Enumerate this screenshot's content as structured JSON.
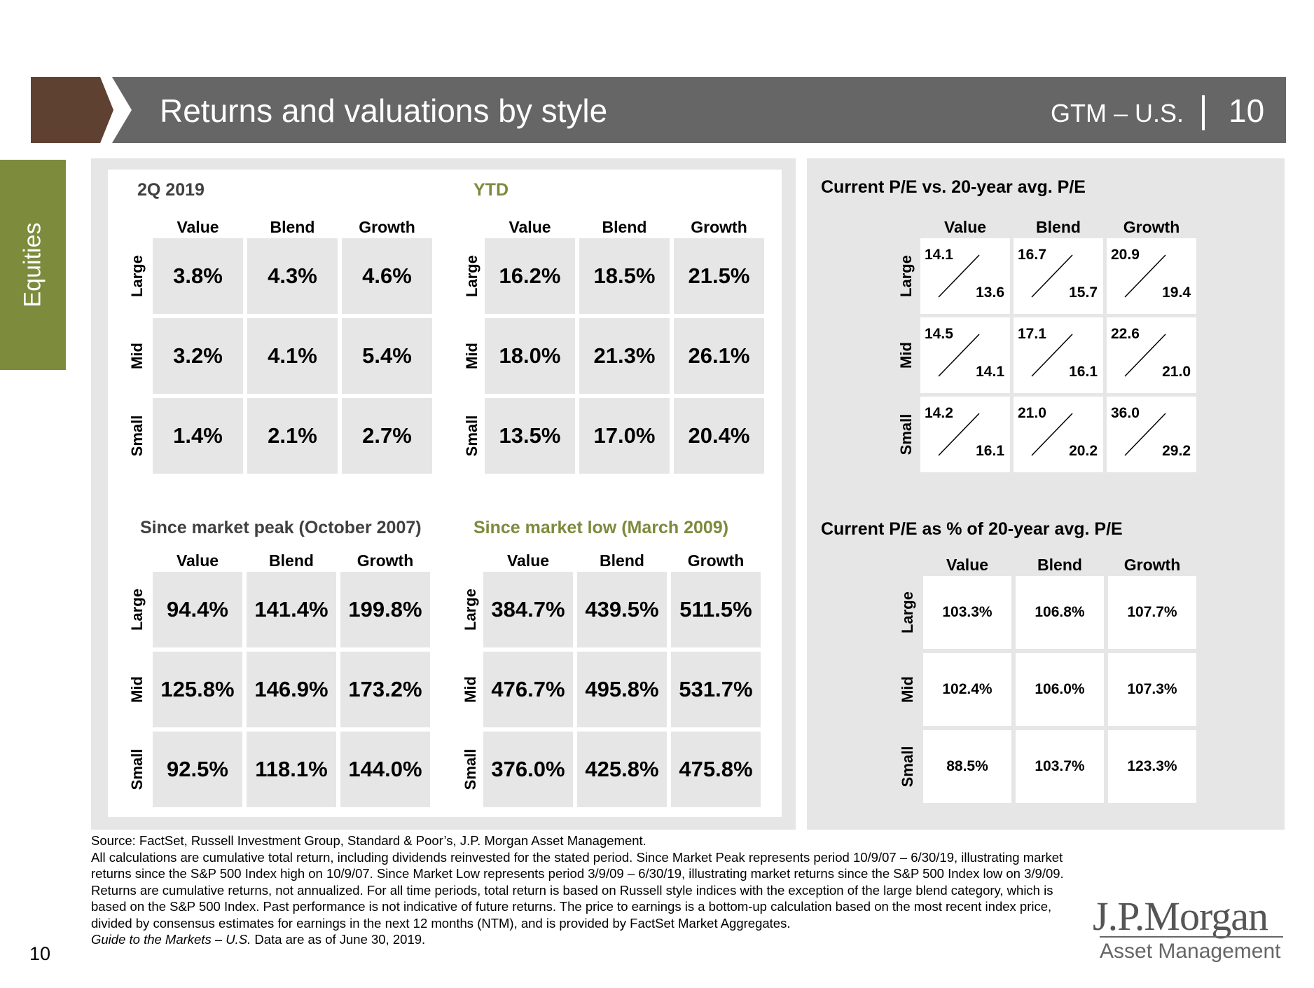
{
  "header": {
    "title": "Returns and valuations by style",
    "gtm": "GTM – U.S.",
    "page": "10"
  },
  "side_tab": "Equities",
  "grids": [
    {
      "title": "2Q 2019",
      "title_color": "#404040",
      "columns": [
        "Value",
        "Blend",
        "Growth"
      ],
      "rows": [
        "Large",
        "Mid",
        "Small"
      ],
      "values": [
        [
          "3.8%",
          "4.3%",
          "4.6%"
        ],
        [
          "3.2%",
          "4.1%",
          "5.4%"
        ],
        [
          "1.4%",
          "2.1%",
          "2.7%"
        ]
      ]
    },
    {
      "title": "YTD",
      "title_color": "#7c8b3c",
      "columns": [
        "Value",
        "Blend",
        "Growth"
      ],
      "rows": [
        "Large",
        "Mid",
        "Small"
      ],
      "values": [
        [
          "16.2%",
          "18.5%",
          "21.5%"
        ],
        [
          "18.0%",
          "21.3%",
          "26.1%"
        ],
        [
          "13.5%",
          "17.0%",
          "20.4%"
        ]
      ]
    },
    {
      "title": "Since market peak (October 2007)",
      "title_color": "#404040",
      "columns": [
        "Value",
        "Blend",
        "Growth"
      ],
      "rows": [
        "Large",
        "Mid",
        "Small"
      ],
      "values": [
        [
          "94.4%",
          "141.4%",
          "199.8%"
        ],
        [
          "125.8%",
          "146.9%",
          "173.2%"
        ],
        [
          "92.5%",
          "118.1%",
          "144.0%"
        ]
      ]
    },
    {
      "title": "Since market low (March 2009)",
      "title_color": "#7c8b3c",
      "columns": [
        "Value",
        "Blend",
        "Growth"
      ],
      "rows": [
        "Large",
        "Mid",
        "Small"
      ],
      "values": [
        [
          "384.7%",
          "439.5%",
          "511.5%"
        ],
        [
          "476.7%",
          "495.8%",
          "531.7%"
        ],
        [
          "376.0%",
          "425.8%",
          "475.8%"
        ]
      ]
    }
  ],
  "pe_compare": {
    "title": "Current P/E vs. 20-year avg. P/E",
    "columns": [
      "Value",
      "Blend",
      "Growth"
    ],
    "rows": [
      "Large",
      "Mid",
      "Small"
    ],
    "values": [
      [
        [
          "14.1",
          "13.6"
        ],
        [
          "16.7",
          "15.7"
        ],
        [
          "20.9",
          "19.4"
        ]
      ],
      [
        [
          "14.5",
          "14.1"
        ],
        [
          "17.1",
          "16.1"
        ],
        [
          "22.6",
          "21.0"
        ]
      ],
      [
        [
          "14.2",
          "16.1"
        ],
        [
          "21.0",
          "20.2"
        ],
        [
          "36.0",
          "29.2"
        ]
      ]
    ]
  },
  "pe_percent": {
    "title": "Current P/E as % of 20-year avg. P/E",
    "columns": [
      "Value",
      "Blend",
      "Growth"
    ],
    "rows": [
      "Large",
      "Mid",
      "Small"
    ],
    "values": [
      [
        "103.3%",
        "106.8%",
        "107.7%"
      ],
      [
        "102.4%",
        "106.0%",
        "107.3%"
      ],
      [
        "88.5%",
        "103.7%",
        "123.3%"
      ]
    ]
  },
  "footnote": {
    "source": "Source: FactSet, Russell Investment Group, Standard & Poor’s, J.P. Morgan Asset Management.",
    "body": "All calculations are cumulative total return, including dividends reinvested for the stated period. Since Market Peak represents period 10/9/07 – 6/30/19, illustrating market returns since the S&P 500 Index high on 10/9/07. Since Market Low represents period 3/9/09 – 6/30/19, illustrating market returns since the S&P 500 Index low on 3/9/09. Returns are cumulative returns, not annualized. For all time periods, total return is based on Russell style indices with the exception of the large blend category, which is based on the S&P 500 Index. Past performance is not indicative of future returns. The price to earnings is a bottom-up calculation based on the most recent index price, divided by consensus estimates for earnings in the next 12 months (NTM), and is provided by FactSet Market Aggregates.",
    "guide_italic": "Guide to the Markets – U.S.",
    "guide_rest": " Data are as of June 30, 2019."
  },
  "page_number": "10",
  "logo": {
    "name": "J.P.Morgan",
    "sub": "Asset Management"
  }
}
